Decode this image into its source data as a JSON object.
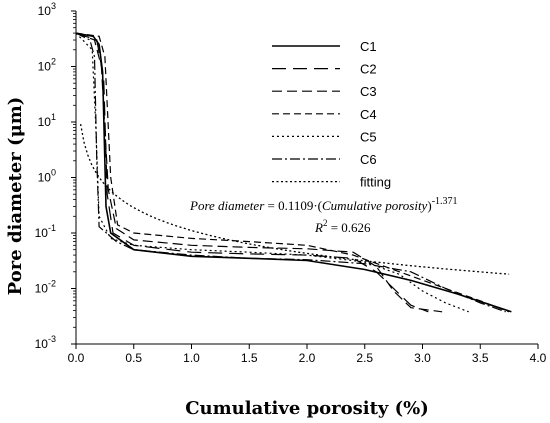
{
  "chart_data": {
    "type": "line",
    "xlabel": "Cumulative porosity (%)",
    "ylabel": "Pore diameter (μm)",
    "xlim": [
      0.0,
      4.0
    ],
    "ylim_log10": [
      -3,
      3
    ],
    "y_scale": "log",
    "x_ticks": [
      "0.0",
      "0.5",
      "1.0",
      "1.5",
      "2.0",
      "2.5",
      "3.0",
      "3.5",
      "4.0"
    ],
    "y_ticks": [
      {
        "base": "10",
        "exp": "-3"
      },
      {
        "base": "10",
        "exp": "-2"
      },
      {
        "base": "10",
        "exp": "-1"
      },
      {
        "base": "10",
        "exp": "0"
      },
      {
        "base": "10",
        "exp": "1"
      },
      {
        "base": "10",
        "exp": "2"
      },
      {
        "base": "10",
        "exp": "3"
      }
    ],
    "legend_placement": "top-right",
    "grid": false,
    "series": [
      {
        "name": "C1",
        "dash": "",
        "width": 1.6,
        "points": [
          [
            0.0,
            400
          ],
          [
            0.15,
            350
          ],
          [
            0.2,
            250
          ],
          [
            0.23,
            80
          ],
          [
            0.26,
            0.3
          ],
          [
            0.3,
            0.1
          ],
          [
            0.5,
            0.05
          ],
          [
            1.0,
            0.038
          ],
          [
            1.5,
            0.035
          ],
          [
            2.0,
            0.032
          ],
          [
            2.5,
            0.022
          ],
          [
            2.9,
            0.014
          ],
          [
            3.3,
            0.008
          ],
          [
            3.77,
            0.0038
          ]
        ]
      },
      {
        "name": "C2",
        "dash": "14,7",
        "width": 1.2,
        "points": [
          [
            0.0,
            400
          ],
          [
            0.18,
            300
          ],
          [
            0.24,
            60
          ],
          [
            0.27,
            0.5
          ],
          [
            0.32,
            0.1
          ],
          [
            0.5,
            0.06
          ],
          [
            1.0,
            0.045
          ],
          [
            1.5,
            0.042
          ],
          [
            2.0,
            0.04
          ],
          [
            2.4,
            0.035
          ],
          [
            2.6,
            0.02
          ],
          [
            2.75,
            0.01
          ],
          [
            2.9,
            0.005
          ],
          [
            3.05,
            0.0038
          ]
        ]
      },
      {
        "name": "C3",
        "dash": "10,5",
        "width": 1.2,
        "points": [
          [
            0.0,
            400
          ],
          [
            0.16,
            300
          ],
          [
            0.22,
            100
          ],
          [
            0.28,
            0.6
          ],
          [
            0.35,
            0.12
          ],
          [
            0.5,
            0.075
          ],
          [
            1.0,
            0.06
          ],
          [
            1.5,
            0.055
          ],
          [
            2.0,
            0.052
          ],
          [
            2.4,
            0.045
          ],
          [
            2.6,
            0.025
          ],
          [
            2.75,
            0.009
          ],
          [
            2.9,
            0.0045
          ],
          [
            3.17,
            0.0038
          ]
        ]
      },
      {
        "name": "C4",
        "dash": "7,4",
        "width": 1.2,
        "points": [
          [
            0.0,
            400
          ],
          [
            0.2,
            350
          ],
          [
            0.25,
            150
          ],
          [
            0.3,
            1.0
          ],
          [
            0.36,
            0.14
          ],
          [
            0.5,
            0.1
          ],
          [
            1.0,
            0.08
          ],
          [
            1.5,
            0.07
          ],
          [
            2.0,
            0.06
          ],
          [
            2.4,
            0.04
          ],
          [
            2.8,
            0.02
          ],
          [
            3.2,
            0.01
          ],
          [
            3.5,
            0.006
          ],
          [
            3.75,
            0.0038
          ]
        ]
      },
      {
        "name": "C5",
        "dash": "2,3",
        "width": 1.2,
        "points": [
          [
            0.0,
            400
          ],
          [
            0.14,
            200
          ],
          [
            0.17,
            10
          ],
          [
            0.2,
            0.2
          ],
          [
            0.3,
            0.08
          ],
          [
            0.5,
            0.06
          ],
          [
            1.0,
            0.05
          ],
          [
            1.5,
            0.045
          ],
          [
            2.0,
            0.04
          ],
          [
            2.5,
            0.03
          ],
          [
            2.8,
            0.018
          ],
          [
            3.0,
            0.009
          ],
          [
            3.2,
            0.0055
          ],
          [
            3.4,
            0.0038
          ]
        ]
      },
      {
        "name": "C6",
        "dash": "10,3,2,3",
        "width": 1.2,
        "points": [
          [
            0.0,
            400
          ],
          [
            0.12,
            300
          ],
          [
            0.16,
            150
          ],
          [
            0.18,
            2.0
          ],
          [
            0.2,
            0.13
          ],
          [
            0.35,
            0.07
          ],
          [
            0.5,
            0.05
          ],
          [
            1.0,
            0.04
          ],
          [
            1.5,
            0.035
          ],
          [
            2.0,
            0.033
          ],
          [
            2.5,
            0.028
          ],
          [
            2.9,
            0.02
          ],
          [
            3.2,
            0.01
          ],
          [
            3.5,
            0.0055
          ],
          [
            3.72,
            0.0038
          ]
        ]
      },
      {
        "name": "fitting",
        "dash": "2,2.5",
        "width": 1.3,
        "fit": {
          "a": 0.1109,
          "b": -1.371,
          "x_from": 0.04,
          "x_to": 3.75
        }
      }
    ],
    "annotation": {
      "line1_italic_a": "Pore diameter",
      "line1_plain_b": " = 0.1109·(",
      "line1_italic_c": "Cumulative porosity",
      "line1_plain_d": ")",
      "line1_sup": "-1.371",
      "line2_italic": "R",
      "line2_sup": "2",
      "line2_plain": " = 0.626"
    }
  }
}
